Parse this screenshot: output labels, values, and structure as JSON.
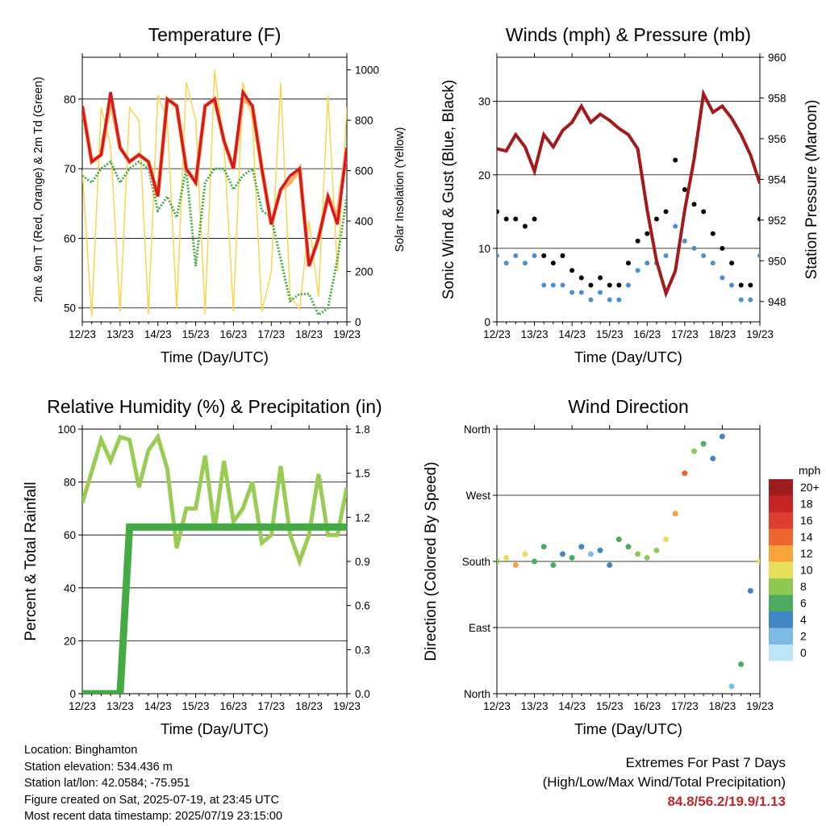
{
  "chart_data": [
    {
      "type": "line",
      "title": "Temperature (F)",
      "xlabel": "Time (Day/UTC)",
      "ylabel": "2m & 9m T (Red, Orange) & 2m Td (Green)",
      "ylabel_right": "Solar Insolation (Yellow)",
      "ylim": [
        48,
        86
      ],
      "ylim_right": [
        0,
        1050
      ],
      "yticks": [
        50,
        60,
        70,
        80
      ],
      "yticks_right": [
        0,
        200,
        400,
        600,
        800,
        1000
      ],
      "x_ticklabels": [
        "12/23",
        "13/23",
        "14/23",
        "15/23",
        "16/23",
        "17/23",
        "18/23",
        "19/23"
      ],
      "x": [
        0,
        0.25,
        0.5,
        0.75,
        1,
        1.25,
        1.5,
        1.75,
        2,
        2.25,
        2.5,
        2.75,
        3,
        3.25,
        3.5,
        3.75,
        4,
        4.25,
        4.5,
        4.75,
        5,
        5.25,
        5.5,
        5.75,
        6,
        6.25,
        6.5,
        6.75,
        7
      ],
      "series": [
        {
          "color": "#d7191c",
          "values": [
            79,
            71,
            72,
            81,
            73,
            71,
            72,
            71,
            66,
            80,
            79,
            70,
            68,
            79,
            80,
            74,
            70,
            81,
            79,
            70,
            62,
            67,
            69,
            70,
            56,
            60,
            66,
            62,
            73
          ]
        },
        {
          "color": "#fdae61",
          "values": [
            79,
            71,
            72,
            80,
            73,
            71,
            72,
            71,
            66,
            80,
            79,
            70,
            68,
            79,
            80,
            74,
            70,
            80,
            79,
            70,
            62,
            67,
            68,
            70,
            56,
            60,
            66,
            63,
            73
          ]
        },
        {
          "color": "#44aa44",
          "values": [
            69,
            68,
            70,
            71,
            68,
            70,
            71,
            70,
            64,
            66,
            63,
            70,
            56,
            68,
            70,
            70,
            67,
            69,
            70,
            64,
            63,
            57,
            51,
            52,
            52,
            49,
            50,
            57,
            66
          ]
        },
        {
          "color": "#f5d64e",
          "values": [
            600,
            20,
            850,
            700,
            40,
            850,
            800,
            30,
            900,
            800,
            50,
            950,
            800,
            30,
            1000,
            700,
            40,
            950,
            800,
            40,
            200,
            950,
            100,
            50,
            400,
            100,
            900,
            200,
            850
          ]
        }
      ]
    },
    {
      "type": "scatter",
      "title": "Winds (mph) & Pressure (mb)",
      "xlabel": "Time (Day/UTC)",
      "ylabel": "Sonic Wind & Gust (Blue, Black)",
      "ylabel_right": "Station Pressure (Maroon)",
      "ylim": [
        0,
        36
      ],
      "ylim_right": [
        947,
        960
      ],
      "yticks": [
        0,
        10,
        20,
        30
      ],
      "yticks_right": [
        948,
        950,
        952,
        954,
        956,
        958,
        960
      ],
      "x_ticklabels": [
        "12/23",
        "13/23",
        "14/23",
        "15/23",
        "16/23",
        "17/23",
        "18/23",
        "19/23"
      ],
      "x": [
        0,
        0.25,
        0.5,
        0.75,
        1,
        1.25,
        1.5,
        1.75,
        2,
        2.25,
        2.5,
        2.75,
        3,
        3.25,
        3.5,
        3.75,
        4,
        4.25,
        4.5,
        4.75,
        5,
        5.25,
        5.5,
        5.75,
        6,
        6.25,
        6.5,
        6.75,
        7
      ],
      "series": [
        {
          "name": "Gust",
          "color": "#000000",
          "values": [
            15,
            14,
            14,
            13,
            14,
            9,
            8,
            9,
            7,
            6,
            5,
            6,
            5,
            5,
            8,
            11,
            12,
            14,
            15,
            22,
            18,
            16,
            15,
            12,
            10,
            8,
            5,
            5,
            14
          ]
        },
        {
          "name": "Wind",
          "color": "#4a90d0",
          "values": [
            9,
            8,
            9,
            8,
            9,
            5,
            5,
            5,
            4,
            4,
            3,
            4,
            3,
            3,
            5,
            7,
            8,
            8,
            9,
            13,
            11,
            10,
            9,
            8,
            6,
            5,
            3,
            3,
            9
          ]
        },
        {
          "name": "Pressure",
          "color": "#a31a1a",
          "values": [
            955.5,
            955.4,
            956.2,
            955.6,
            954.4,
            956.2,
            955.6,
            956.4,
            956.8,
            957.6,
            956.8,
            957.2,
            956.9,
            956.5,
            956.2,
            955.5,
            952.5,
            950.0,
            948.4,
            949.5,
            952.5,
            955.0,
            958.2,
            957.3,
            957.6,
            957.0,
            956.2,
            955.2,
            953.8
          ]
        }
      ]
    },
    {
      "type": "line",
      "title": "Relative Humidity (%) & Precipitation (in)",
      "xlabel": "Time (Day/UTC)",
      "ylabel": "Percent & Total Rainfall",
      "ylim": [
        0,
        100
      ],
      "ylim_right": [
        0,
        1.8
      ],
      "yticks": [
        0,
        20,
        40,
        60,
        80,
        100
      ],
      "yticks_right": [
        "0.0",
        "0.3",
        "0.6",
        "0.9",
        "1.2",
        "1.5",
        "1.8"
      ],
      "x_ticklabels": [
        "12/23",
        "13/23",
        "14/23",
        "15/23",
        "16/23",
        "17/23",
        "18/23",
        "19/23"
      ],
      "x": [
        0,
        0.25,
        0.5,
        0.75,
        1,
        1.25,
        1.5,
        1.75,
        2,
        2.25,
        2.5,
        2.75,
        3,
        3.25,
        3.5,
        3.75,
        4,
        4.25,
        4.5,
        4.75,
        5,
        5.25,
        5.5,
        5.75,
        6,
        6.25,
        6.5,
        6.75,
        7
      ],
      "series": [
        {
          "color": "#99cc55",
          "values": [
            72,
            84,
            96,
            88,
            97,
            96,
            78,
            92,
            97,
            85,
            55,
            70,
            70,
            90,
            62,
            88,
            65,
            70,
            80,
            57,
            60,
            86,
            60,
            50,
            60,
            83,
            60,
            60,
            78
          ]
        },
        {
          "color": "#44aa44",
          "values": [
            0,
            0,
            0,
            0,
            0,
            63,
            63,
            63,
            63,
            63,
            63,
            63,
            63,
            63,
            63,
            63,
            63,
            63,
            63,
            63,
            63,
            63,
            63,
            63,
            63,
            63,
            63,
            63,
            63
          ]
        }
      ]
    },
    {
      "type": "scatter",
      "title": "Wind Direction",
      "xlabel": "Time (Day/UTC)",
      "ylabel": "Direction (Colored By Speed)",
      "ylim": [
        0,
        360
      ],
      "ytick_labels": [
        "North",
        "East",
        "South",
        "West",
        "North"
      ],
      "x_ticklabels": [
        "12/23",
        "13/23",
        "14/23",
        "15/23",
        "16/23",
        "17/23",
        "18/23",
        "19/23"
      ],
      "x": [
        0,
        0.25,
        0.5,
        0.75,
        1,
        1.25,
        1.5,
        1.75,
        2,
        2.25,
        2.5,
        2.75,
        3,
        3.25,
        3.5,
        3.75,
        4,
        4.25,
        4.5,
        4.75,
        5,
        5.25,
        5.5,
        5.75,
        6,
        6.25,
        6.5,
        6.75,
        7
      ],
      "values": [
        180,
        185,
        175,
        190,
        180,
        200,
        175,
        190,
        185,
        200,
        190,
        195,
        175,
        210,
        200,
        190,
        185,
        195,
        210,
        245,
        300,
        330,
        340,
        320,
        350,
        10,
        40,
        140,
        180
      ],
      "speeds": [
        8,
        10,
        11,
        9,
        6,
        5,
        6,
        4,
        5,
        3,
        2,
        3,
        4,
        5,
        6,
        7,
        8,
        8,
        10,
        12,
        14,
        7,
        6,
        4,
        3,
        2,
        6,
        3,
        9
      ],
      "legend": {
        "title": "mph",
        "labels": [
          "20+",
          "18",
          "16",
          "14",
          "12",
          "10",
          "8",
          "6",
          "4",
          "2",
          "0"
        ],
        "colors": [
          "#9e1b1e",
          "#c82325",
          "#e03c2f",
          "#f06432",
          "#f9a33c",
          "#e6df59",
          "#8ec953",
          "#4caa61",
          "#3f87c4",
          "#7dbbe5",
          "#bfe6f8"
        ]
      }
    }
  ],
  "info": {
    "location": "Location: Binghamton",
    "elevation": "Station elevation: 534.436 m",
    "latlon": "Station lat/lon: 42.0584; -75.951",
    "created": "Figure created on Sat, 2025-07-19, at 23:45 UTC",
    "recent": "Most recent data timestamp: 2025/07/19 23:15:00"
  },
  "extremes": {
    "title": "Extremes For Past 7 Days",
    "subtitle": "(High/Low/Max Wind/Total Precipitation)",
    "values": "84.8/56.2/19.9/1.13"
  }
}
